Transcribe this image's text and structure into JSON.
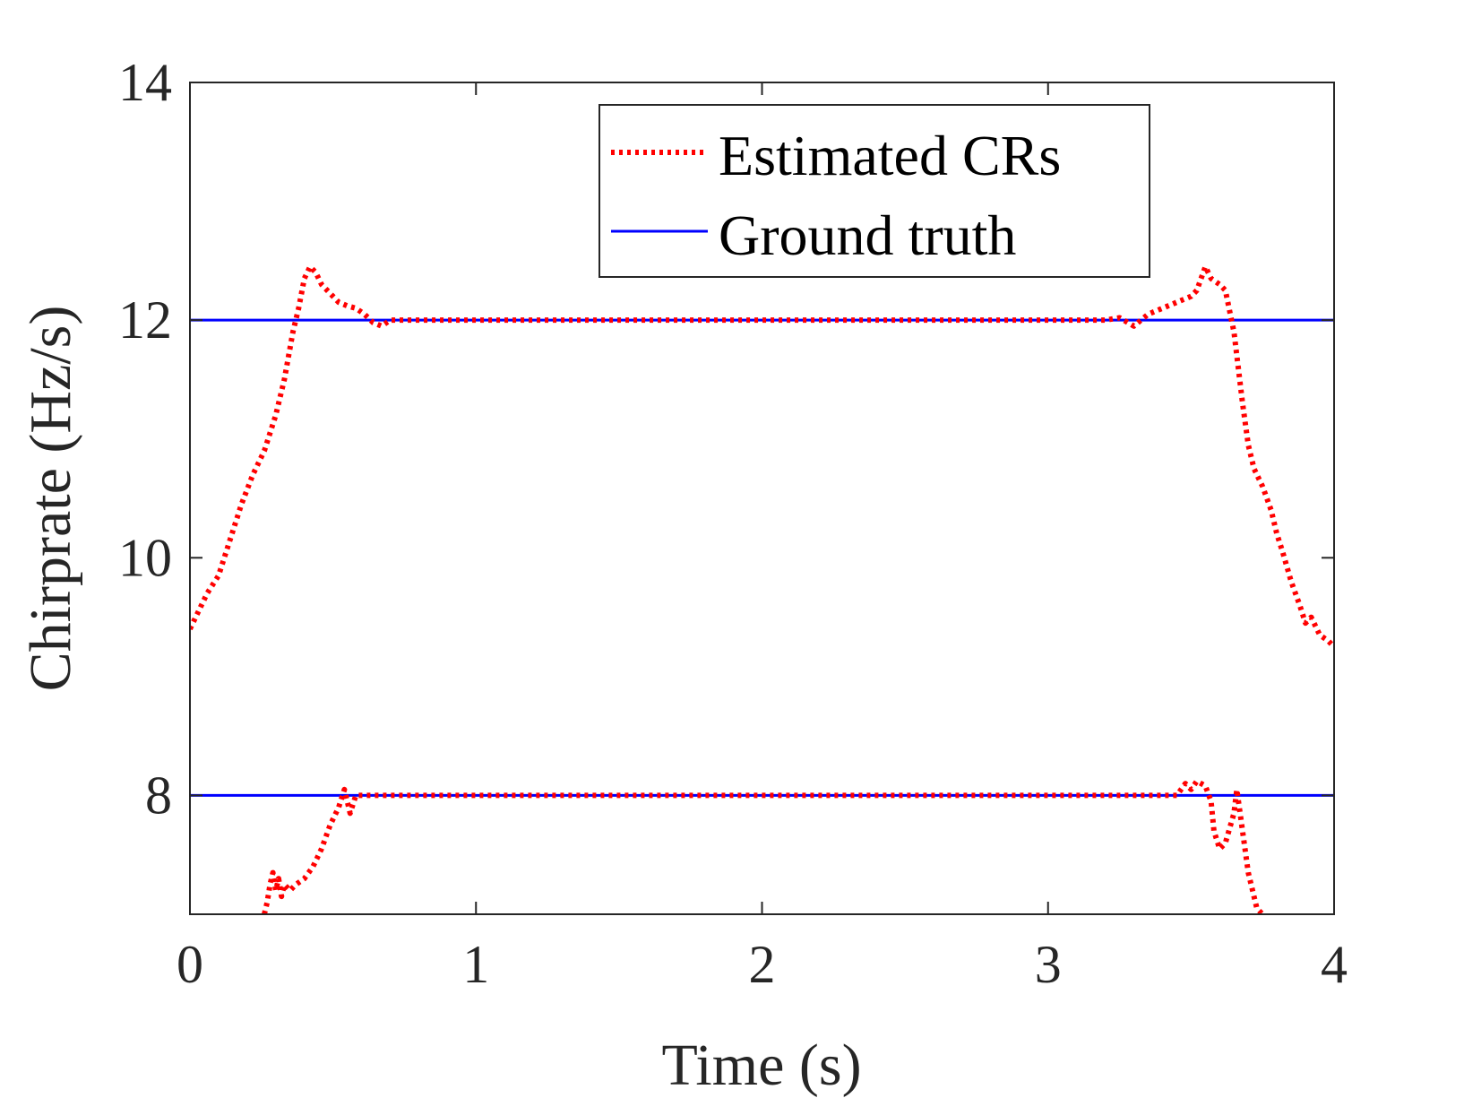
{
  "chart_data": {
    "type": "line",
    "title": "",
    "xlabel": "Time (s)",
    "ylabel": "Chirprate (Hz/s)",
    "xlim": [
      0,
      4
    ],
    "ylim": [
      7,
      14
    ],
    "xticks": [
      0,
      1,
      2,
      3,
      4
    ],
    "yticks": [
      8,
      10,
      12,
      14
    ],
    "xtick_labels": [
      "0",
      "1",
      "2",
      "3",
      "4"
    ],
    "ytick_labels": [
      "8",
      "10",
      "12",
      "14"
    ],
    "grid": false,
    "legend_position": "top-right",
    "series": [
      {
        "name": "Estimated CRs",
        "style": "dotted",
        "color": "#ff0000",
        "segments": [
          {
            "x": [
              0,
              0.03,
              0.06,
              0.1,
              0.14,
              0.18,
              0.22,
              0.26,
              0.3,
              0.33,
              0.36,
              0.38,
              0.4,
              0.42,
              0.44,
              0.46,
              0.48,
              0.5,
              0.52,
              0.55,
              0.58,
              0.61,
              0.64,
              0.67,
              0.7,
              0.73,
              0.76,
              0.8,
              1.0,
              2.0,
              3.0,
              3.2,
              3.25,
              3.3,
              3.35,
              3.4,
              3.45,
              3.5,
              3.52,
              3.55,
              3.57,
              3.6,
              3.62,
              3.65,
              3.68,
              3.7,
              3.72,
              3.75,
              3.78,
              3.8,
              3.82,
              3.85,
              3.88,
              3.9,
              3.92,
              3.95,
              3.98,
              4.0
            ],
            "y": [
              9.4,
              9.55,
              9.7,
              9.85,
              10.15,
              10.45,
              10.7,
              10.9,
              11.2,
              11.5,
              11.9,
              12.1,
              12.35,
              12.45,
              12.4,
              12.3,
              12.25,
              12.2,
              12.15,
              12.12,
              12.1,
              12.05,
              11.98,
              11.95,
              12.0,
              12.0,
              12.0,
              12.0,
              12.0,
              12.0,
              12.0,
              12.0,
              12.02,
              11.95,
              12.05,
              12.1,
              12.15,
              12.2,
              12.25,
              12.45,
              12.35,
              12.3,
              12.25,
              11.9,
              11.3,
              10.95,
              10.75,
              10.6,
              10.4,
              10.2,
              10.05,
              9.8,
              9.6,
              9.45,
              9.5,
              9.35,
              9.3,
              9.25
            ]
          },
          {
            "x": [
              0.26,
              0.27,
              0.28,
              0.29,
              0.3,
              0.31,
              0.32,
              0.33,
              0.35,
              0.37,
              0.4,
              0.43,
              0.46,
              0.49,
              0.52,
              0.54,
              0.56,
              0.58,
              0.6,
              1.0,
              2.0,
              3.0,
              3.45,
              3.48,
              3.5,
              3.52,
              3.55,
              3.57,
              3.58,
              3.6,
              3.62,
              3.65,
              3.66,
              3.68,
              3.7,
              3.72,
              3.73,
              3.75
            ],
            "y": [
              7.0,
              7.1,
              7.25,
              7.35,
              7.2,
              7.3,
              7.15,
              7.25,
              7.2,
              7.25,
              7.3,
              7.4,
              7.55,
              7.75,
              7.9,
              8.05,
              7.85,
              8.0,
              8.0,
              8.0,
              8.0,
              8.0,
              8.0,
              8.1,
              8.05,
              8.12,
              8.08,
              7.95,
              7.7,
              7.55,
              7.6,
              7.85,
              8.05,
              7.7,
              7.35,
              7.15,
              7.05,
              7.0
            ]
          }
        ]
      },
      {
        "name": "Ground truth",
        "style": "solid",
        "color": "#0000ff",
        "lines": [
          {
            "x": [
              0,
              4
            ],
            "y": [
              12,
              12
            ]
          },
          {
            "x": [
              0,
              4
            ],
            "y": [
              8,
              8
            ]
          }
        ]
      }
    ]
  }
}
